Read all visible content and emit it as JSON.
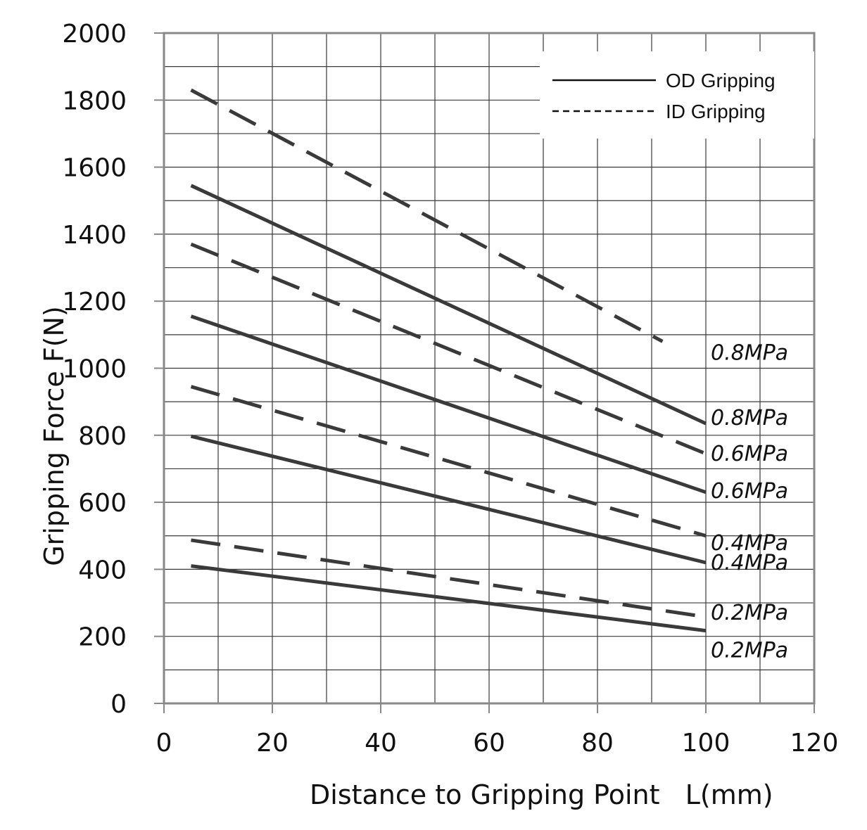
{
  "chart_data": {
    "type": "line",
    "title": "",
    "xlabel": "Distance to Gripping Point   L(mm)",
    "ylabel": "Gripping Force F(N)",
    "xlim": [
      0,
      120
    ],
    "ylim": [
      0,
      2000
    ],
    "x_ticks": [
      "0",
      "20",
      "40",
      "60",
      "80",
      "100",
      "120"
    ],
    "y_ticks": [
      "0",
      "200",
      "400",
      "600",
      "800",
      "1000",
      "1200",
      "1400",
      "1600",
      "1800",
      "2000"
    ],
    "grid": true,
    "legend_position": "top-right",
    "legend": [
      {
        "label": "OD Gripping",
        "style": "solid"
      },
      {
        "label": "ID Gripping",
        "style": "dashed"
      }
    ],
    "series": [
      {
        "label": "0.8MPa",
        "group": "ID Gripping",
        "style": "dashed",
        "x": [
          5,
          92
        ],
        "y": [
          1830,
          1080
        ]
      },
      {
        "label": "0.8MPa",
        "group": "OD Gripping",
        "style": "solid",
        "x": [
          5,
          100
        ],
        "y": [
          1545,
          835
        ]
      },
      {
        "label": "0.6MPa",
        "group": "ID Gripping",
        "style": "dashed",
        "x": [
          5,
          100
        ],
        "y": [
          1370,
          745
        ]
      },
      {
        "label": "0.6MPa",
        "group": "OD Gripping",
        "style": "solid",
        "x": [
          5,
          100
        ],
        "y": [
          1155,
          630
        ]
      },
      {
        "label": "0.4MPa",
        "group": "ID Gripping",
        "style": "dashed",
        "x": [
          5,
          100
        ],
        "y": [
          945,
          500
        ]
      },
      {
        "label": "0.4MPa",
        "group": "OD Gripping",
        "style": "solid",
        "x": [
          5,
          100
        ],
        "y": [
          797,
          420
        ]
      },
      {
        "label": "0.2MPa",
        "group": "ID Gripping",
        "style": "dashed",
        "x": [
          5,
          100
        ],
        "y": [
          487,
          258
        ]
      },
      {
        "label": "0.2MPa",
        "group": "OD Gripping",
        "style": "solid",
        "x": [
          5,
          100
        ],
        "y": [
          410,
          217
        ]
      }
    ],
    "colors": {
      "line": "#3a3a3a",
      "grid": "#3a3a3a",
      "axis": "#888888"
    }
  }
}
